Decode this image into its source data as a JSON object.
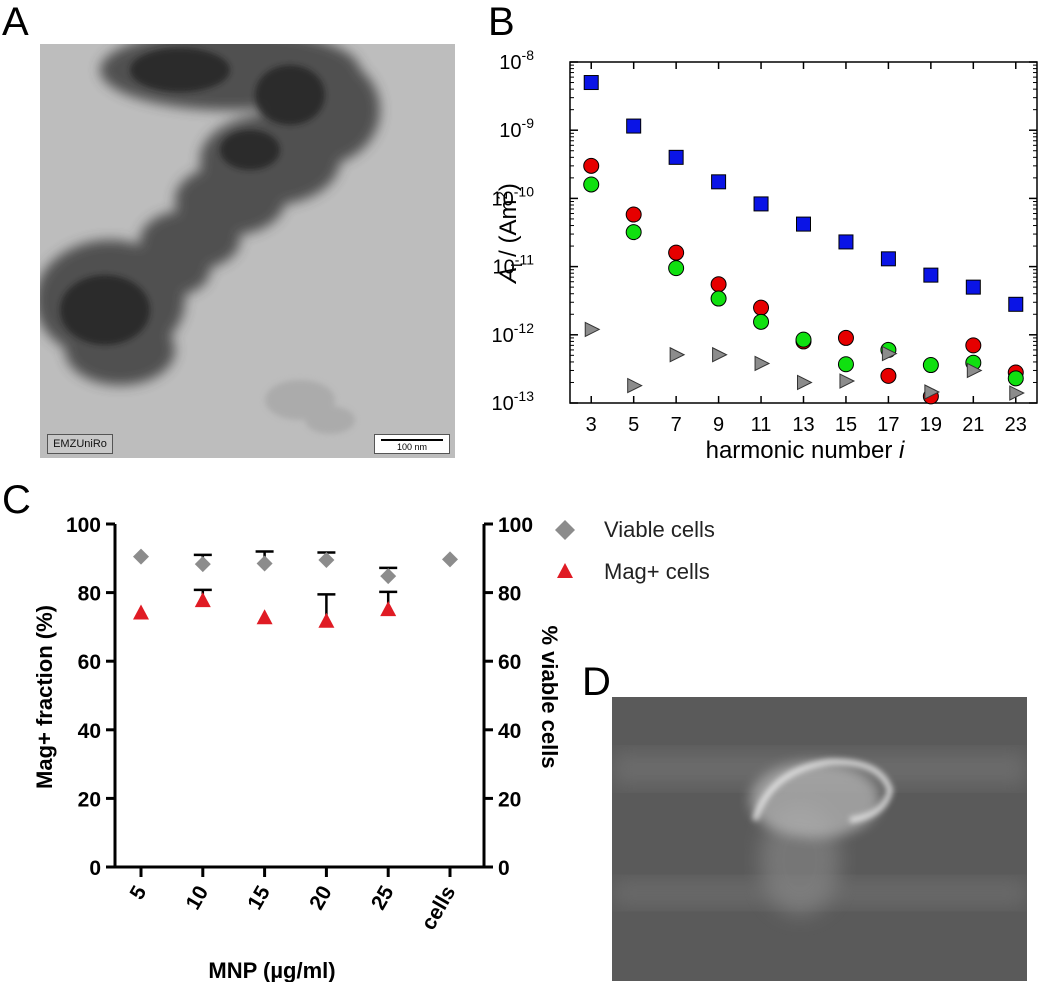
{
  "panels": {
    "a": "A",
    "b": "B",
    "c": "C",
    "d": "D"
  },
  "tem": {
    "label": "EMZUniRo",
    "scale_bar": "100 nm"
  },
  "chart_data": [
    {
      "panel": "B",
      "type": "scatter",
      "yscale": "log",
      "xlabel": "harmonic number i",
      "ylabel": "Ai / (Am2)",
      "xlim": [
        2,
        24
      ],
      "ylim": [
        1e-13,
        1e-08
      ],
      "x_ticks": [
        3,
        5,
        7,
        9,
        11,
        13,
        15,
        17,
        19,
        21,
        23
      ],
      "y_ticks": [
        "10-13",
        "10-12",
        "10-11",
        "10-10",
        "10-9",
        "10-8"
      ],
      "series": [
        {
          "name": "blue squares",
          "marker": "square",
          "color": "#0a14e6",
          "x": [
            3,
            5,
            7,
            9,
            11,
            13,
            15,
            17,
            19,
            21,
            23
          ],
          "values": [
            5e-09,
            1.15e-09,
            4e-10,
            1.75e-10,
            8.3e-11,
            4.2e-11,
            2.3e-11,
            1.3e-11,
            7.5e-12,
            5e-12,
            2.8e-12
          ]
        },
        {
          "name": "red circles",
          "marker": "circle",
          "color": "#e60000",
          "x": [
            3,
            5,
            7,
            9,
            11,
            13,
            15,
            17,
            19,
            21,
            23
          ],
          "values": [
            3e-10,
            5.8e-11,
            1.6e-11,
            5.5e-12,
            2.5e-12,
            8e-13,
            9e-13,
            2.5e-13,
            1.25e-13,
            7e-13,
            2.8e-13
          ]
        },
        {
          "name": "green circles",
          "marker": "circle",
          "color": "#10e010",
          "x": [
            3,
            5,
            7,
            9,
            11,
            13,
            15,
            17,
            19,
            21,
            23
          ],
          "values": [
            1.6e-10,
            3.2e-11,
            9.5e-12,
            3.4e-12,
            1.55e-12,
            8.5e-13,
            3.7e-13,
            6e-13,
            3.6e-13,
            3.9e-13,
            2.3e-13
          ]
        },
        {
          "name": "gray triangles",
          "marker": "triangle-right",
          "color": "#8c8c8c",
          "x": [
            3,
            5,
            7,
            9,
            11,
            13,
            15,
            17,
            19,
            21,
            23
          ],
          "values": [
            1.2e-12,
            1.8e-13,
            5.1e-13,
            5.1e-13,
            3.8e-13,
            2e-13,
            2.1e-13,
            5.3e-13,
            1.45e-13,
            3e-13,
            1.4e-13
          ]
        }
      ]
    },
    {
      "panel": "C",
      "type": "scatter",
      "categories": [
        "5",
        "10",
        "15",
        "20",
        "25",
        "cells"
      ],
      "xlabel": "MNP (µg/ml)",
      "ylabel": "Mag+ fraction (%)",
      "ylabel_right": "% viable cells",
      "ylim": [
        0,
        100
      ],
      "y_ticks": [
        "0",
        "20",
        "40",
        "60",
        "80",
        "100"
      ],
      "legend_position": "right",
      "series": [
        {
          "name": "Viable cells",
          "marker": "diamond",
          "color": "#8c8c8c",
          "values": [
            90.5,
            88.3,
            88.5,
            89.5,
            84.8,
            89.7
          ],
          "error_upper": [
            null,
            91,
            92,
            91.7,
            87.2,
            null
          ]
        },
        {
          "name": "Mag+ cells",
          "marker": "triangle-up",
          "color": "#e01b24",
          "values": [
            74.2,
            77.8,
            72.8,
            71.8,
            75.2,
            null
          ],
          "error_upper": [
            null,
            80.8,
            null,
            79.5,
            80.2,
            null
          ]
        }
      ]
    }
  ]
}
